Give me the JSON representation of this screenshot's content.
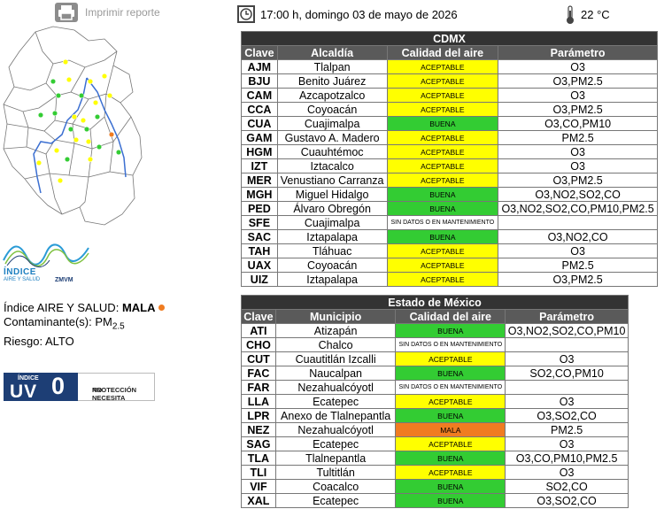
{
  "toolbar": {
    "print_label": "Imprimir reporte"
  },
  "header": {
    "datetime": "17:00 h, domingo 03 de mayo de 2026",
    "temperature": "22 °C"
  },
  "logo": {
    "line1": "ÍNDICE",
    "line2": "AIRE Y SALUD",
    "line3": "ZMVM"
  },
  "index": {
    "label": "Índice AIRE Y SALUD: ",
    "value": "MALA",
    "value_color": "#f07c21",
    "pollutant_label": "Contaminante(s): ",
    "pollutant_main": "PM",
    "pollutant_sub": "2.5",
    "risk": "Riesgo: ALTO"
  },
  "uv": {
    "label_top": "ÍNDICE",
    "label_uv": "UV",
    "value": "0",
    "note_line1": "NO NECESITA",
    "note_line2": "PROTECCIÓN"
  },
  "colors": {
    "ACEPTABLE": "#ffff00",
    "BUENA": "#33cc33",
    "MALA": "#f07c21",
    "header_dark": "#333333"
  },
  "cdmx": {
    "title": "CDMX",
    "columns": [
      "Clave",
      "Alcaldía",
      "Calidad del aire",
      "Parámetro"
    ],
    "rows": [
      {
        "clave": "AJM",
        "name": "Tlalpan",
        "quality": "ACEPTABLE",
        "param": "O3"
      },
      {
        "clave": "BJU",
        "name": "Benito Juárez",
        "quality": "ACEPTABLE",
        "param": "O3,PM2.5"
      },
      {
        "clave": "CAM",
        "name": "Azcapotzalco",
        "quality": "ACEPTABLE",
        "param": "O3"
      },
      {
        "clave": "CCA",
        "name": "Coyoacán",
        "quality": "ACEPTABLE",
        "param": "O3,PM2.5"
      },
      {
        "clave": "CUA",
        "name": "Cuajimalpa",
        "quality": "BUENA",
        "param": "O3,CO,PM10"
      },
      {
        "clave": "GAM",
        "name": "Gustavo A. Madero",
        "quality": "ACEPTABLE",
        "param": "PM2.5"
      },
      {
        "clave": "HGM",
        "name": "Cuauhtémoc",
        "quality": "ACEPTABLE",
        "param": "O3"
      },
      {
        "clave": "IZT",
        "name": "Iztacalco",
        "quality": "ACEPTABLE",
        "param": "O3"
      },
      {
        "clave": "MER",
        "name": "Venustiano Carranza",
        "quality": "ACEPTABLE",
        "param": "O3,PM2.5"
      },
      {
        "clave": "MGH",
        "name": "Miguel Hidalgo",
        "quality": "BUENA",
        "param": "O3,NO2,SO2,CO"
      },
      {
        "clave": "PED",
        "name": "Álvaro Obregón",
        "quality": "BUENA",
        "param": "O3,NO2,SO2,CO,PM10,PM2.5"
      },
      {
        "clave": "SFE",
        "name": "Cuajimalpa",
        "quality": "SIN DATOS O EN MANTENIMIENTO",
        "param": ""
      },
      {
        "clave": "SAC",
        "name": "Iztapalapa",
        "quality": "BUENA",
        "param": "O3,NO2,CO"
      },
      {
        "clave": "TAH",
        "name": "Tláhuac",
        "quality": "ACEPTABLE",
        "param": "O3"
      },
      {
        "clave": "UAX",
        "name": "Coyoacán",
        "quality": "ACEPTABLE",
        "param": "PM2.5"
      },
      {
        "clave": "UIZ",
        "name": "Iztapalapa",
        "quality": "ACEPTABLE",
        "param": "O3,PM2.5"
      }
    ]
  },
  "edomex": {
    "title": "Estado de México",
    "columns": [
      "Clave",
      "Municipio",
      "Calidad del aire",
      "Parámetro"
    ],
    "rows": [
      {
        "clave": "ATI",
        "name": "Atizapán",
        "quality": "BUENA",
        "param": "O3,NO2,SO2,CO,PM10"
      },
      {
        "clave": "CHO",
        "name": "Chalco",
        "quality": "SIN DATOS O EN MANTENIMIENTO",
        "param": ""
      },
      {
        "clave": "CUT",
        "name": "Cuautitlán Izcalli",
        "quality": "ACEPTABLE",
        "param": "O3"
      },
      {
        "clave": "FAC",
        "name": "Naucalpan",
        "quality": "BUENA",
        "param": "SO2,CO,PM10"
      },
      {
        "clave": "FAR",
        "name": "Nezahualcóyotl",
        "quality": "SIN DATOS O EN MANTENIMIENTO",
        "param": ""
      },
      {
        "clave": "LLA",
        "name": "Ecatepec",
        "quality": "ACEPTABLE",
        "param": "O3"
      },
      {
        "clave": "LPR",
        "name": "Anexo de Tlalnepantla",
        "quality": "BUENA",
        "param": "O3,SO2,CO"
      },
      {
        "clave": "NEZ",
        "name": "Nezahualcóyotl",
        "quality": "MALA",
        "param": "PM2.5"
      },
      {
        "clave": "SAG",
        "name": "Ecatepec",
        "quality": "ACEPTABLE",
        "param": "O3"
      },
      {
        "clave": "TLA",
        "name": "Tlalnepantla",
        "quality": "BUENA",
        "param": "O3,CO,PM10,PM2.5"
      },
      {
        "clave": "TLI",
        "name": "Tultitlán",
        "quality": "ACEPTABLE",
        "param": "O3"
      },
      {
        "clave": "VIF",
        "name": "Coacalco",
        "quality": "BUENA",
        "param": "SO2,CO"
      },
      {
        "clave": "XAL",
        "name": "Ecatepec",
        "quality": "BUENA",
        "param": "O3,SO2,CO"
      }
    ]
  }
}
